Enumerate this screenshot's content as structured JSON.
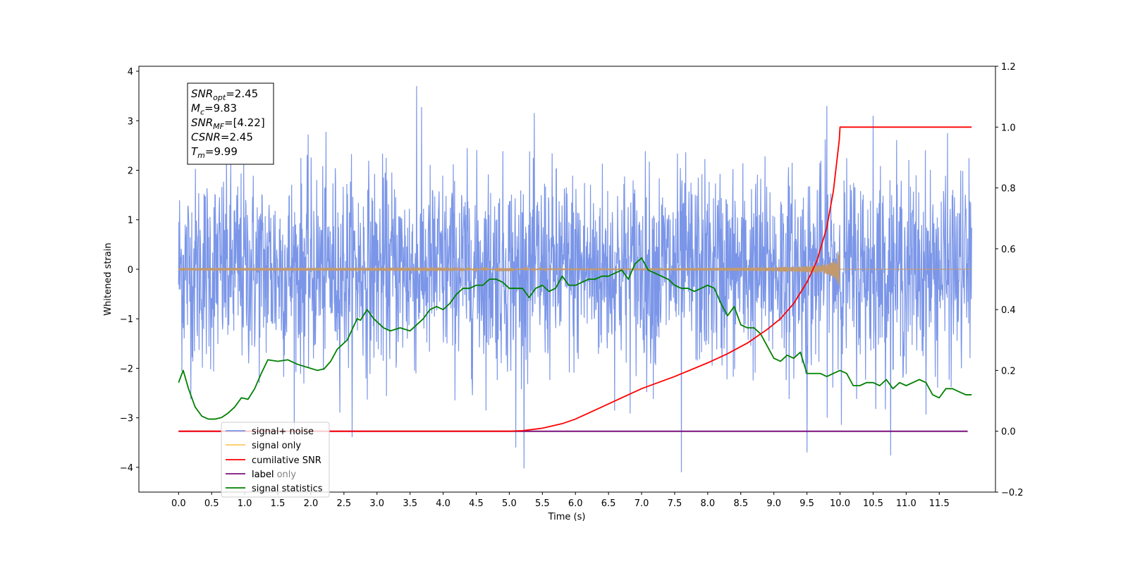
{
  "chart_data": {
    "type": "line",
    "title": "",
    "xlabel": "Time (s)",
    "ylabel": "Whitened strain",
    "xlim": [
      -0.6,
      12.35
    ],
    "ylim": [
      -4.5,
      4.1
    ],
    "y2lim": [
      -0.2,
      1.2
    ],
    "x_ticks": [
      0.0,
      0.5,
      1.0,
      1.5,
      2.0,
      2.5,
      3.0,
      3.5,
      4.0,
      4.5,
      5.0,
      5.5,
      6.0,
      6.5,
      7.0,
      7.5,
      8.0,
      8.5,
      9.0,
      9.5,
      10.0,
      10.5,
      11.0,
      11.5
    ],
    "x_tick_labels": [
      "0.0",
      "0.5",
      "1.0",
      "1.5",
      "2.0",
      "2.5",
      "3.0",
      "3.5",
      "4.0",
      "4.5",
      "5.0",
      "5.5",
      "6.0",
      "6.5",
      "7.0",
      "7.5",
      "8.0",
      "8.5",
      "9.0",
      "9.5",
      "10.0",
      "10.5",
      "11.0",
      "11.5"
    ],
    "y_ticks": [
      4,
      3,
      2,
      1,
      0,
      -1,
      -2,
      -3,
      -4
    ],
    "y_tick_labels": [
      "4",
      "3",
      "2",
      "1",
      "0",
      "−1",
      "−2",
      "−3",
      "−4"
    ],
    "y2_ticks": [
      1.2,
      1.0,
      0.8,
      0.6,
      0.4,
      0.2,
      0.0,
      -0.2
    ],
    "y2_tick_labels": [
      "1.2",
      "1.0",
      "0.8",
      "0.6",
      "0.4",
      "0.2",
      "0.0",
      "−0.2"
    ],
    "grid": false,
    "legend_position": "lower-left",
    "annotation": {
      "lines": [
        {
          "sym": "SNR",
          "sub": "opt",
          "val": "=2.45"
        },
        {
          "sym": "M",
          "sub": "c",
          "val": "=9.83"
        },
        {
          "sym": "SNR",
          "sub": "MF",
          "val": "=[4.22]"
        },
        {
          "sym": "CSNR",
          "sub": "",
          "val": "=2.45"
        },
        {
          "sym": "T",
          "sub": "m",
          "val": "=9.99"
        }
      ]
    },
    "series": [
      {
        "name": "signal+ noise",
        "color": "#7b96e8",
        "axis": "left",
        "x_range": [
          0.0,
          11.99
        ],
        "mean": 0.0,
        "std": 1.0,
        "peak_samples": [
          [
            3.6,
            3.7
          ],
          [
            7.6,
            -4.1
          ],
          [
            10.5,
            3.1
          ],
          [
            9.8,
            3.3
          ],
          [
            5.1,
            -3.6
          ],
          [
            9.5,
            -3.7
          ]
        ]
      },
      {
        "name": "signal only",
        "color": "#ffc862",
        "render_color": "#c49a6c",
        "axis": "left",
        "x_range": [
          0.0,
          11.99
        ],
        "chirp_end": 9.99,
        "amplitude_at_merger": 0.45
      },
      {
        "name": "cumilative SNR",
        "color": "#ff0000",
        "axis": "right",
        "x": [
          0.0,
          5.0,
          5.2,
          5.5,
          5.8,
          6.0,
          6.3,
          6.6,
          7.0,
          7.5,
          8.0,
          8.3,
          8.6,
          8.9,
          9.1,
          9.3,
          9.5,
          9.65,
          9.8,
          9.9,
          9.99,
          10.0,
          11.99
        ],
        "y": [
          0.0,
          0.0,
          0.002,
          0.01,
          0.025,
          0.04,
          0.07,
          0.1,
          0.14,
          0.18,
          0.225,
          0.255,
          0.29,
          0.335,
          0.37,
          0.42,
          0.49,
          0.56,
          0.67,
          0.79,
          0.96,
          1.0,
          1.0
        ]
      },
      {
        "name": "label",
        "color": "#7b0f7b",
        "axis": "right",
        "x": [
          0.0,
          11.93
        ],
        "y": [
          0.0,
          0.0
        ]
      },
      {
        "name": "label only",
        "color": "#7b0f7b",
        "hidden": true
      },
      {
        "name": "signal statistics",
        "color": "#008000",
        "axis": "right",
        "x": [
          0.0,
          0.07,
          0.15,
          0.25,
          0.35,
          0.45,
          0.55,
          0.65,
          0.75,
          0.85,
          0.95,
          1.05,
          1.15,
          1.25,
          1.35,
          1.5,
          1.65,
          1.8,
          1.95,
          2.1,
          2.2,
          2.3,
          2.4,
          2.55,
          2.7,
          2.75,
          2.85,
          2.95,
          3.0,
          3.1,
          3.2,
          3.35,
          3.5,
          3.6,
          3.7,
          3.8,
          3.9,
          4.0,
          4.1,
          4.2,
          4.3,
          4.4,
          4.5,
          4.6,
          4.7,
          4.8,
          4.9,
          5.0,
          5.1,
          5.2,
          5.3,
          5.4,
          5.5,
          5.6,
          5.7,
          5.8,
          5.9,
          6.0,
          6.1,
          6.2,
          6.3,
          6.4,
          6.5,
          6.6,
          6.7,
          6.8,
          6.9,
          7.0,
          7.1,
          7.2,
          7.3,
          7.4,
          7.5,
          7.6,
          7.7,
          7.8,
          7.9,
          8.0,
          8.1,
          8.2,
          8.3,
          8.4,
          8.5,
          8.6,
          8.7,
          8.8,
          8.9,
          9.0,
          9.1,
          9.2,
          9.3,
          9.4,
          9.5,
          9.6,
          9.7,
          9.8,
          9.9,
          10.0,
          10.1,
          10.2,
          10.3,
          10.4,
          10.5,
          10.6,
          10.7,
          10.8,
          10.9,
          11.0,
          11.1,
          11.2,
          11.3,
          11.4,
          11.5,
          11.6,
          11.7,
          11.8,
          11.9,
          11.99
        ],
        "y": [
          0.16,
          0.2,
          0.14,
          0.08,
          0.05,
          0.04,
          0.04,
          0.045,
          0.06,
          0.08,
          0.11,
          0.105,
          0.14,
          0.19,
          0.235,
          0.23,
          0.235,
          0.22,
          0.21,
          0.2,
          0.205,
          0.23,
          0.27,
          0.3,
          0.37,
          0.365,
          0.4,
          0.37,
          0.36,
          0.34,
          0.33,
          0.34,
          0.33,
          0.35,
          0.37,
          0.4,
          0.41,
          0.4,
          0.42,
          0.45,
          0.47,
          0.47,
          0.48,
          0.48,
          0.5,
          0.5,
          0.49,
          0.47,
          0.47,
          0.47,
          0.44,
          0.47,
          0.48,
          0.46,
          0.47,
          0.51,
          0.48,
          0.48,
          0.49,
          0.5,
          0.5,
          0.51,
          0.51,
          0.52,
          0.53,
          0.5,
          0.55,
          0.57,
          0.53,
          0.52,
          0.51,
          0.5,
          0.48,
          0.47,
          0.47,
          0.46,
          0.47,
          0.48,
          0.47,
          0.42,
          0.38,
          0.41,
          0.35,
          0.34,
          0.34,
          0.32,
          0.28,
          0.24,
          0.23,
          0.25,
          0.24,
          0.26,
          0.19,
          0.19,
          0.19,
          0.18,
          0.19,
          0.2,
          0.19,
          0.15,
          0.15,
          0.16,
          0.16,
          0.15,
          0.17,
          0.14,
          0.16,
          0.15,
          0.16,
          0.17,
          0.16,
          0.12,
          0.11,
          0.14,
          0.14,
          0.13,
          0.12,
          0.12
        ]
      }
    ]
  }
}
